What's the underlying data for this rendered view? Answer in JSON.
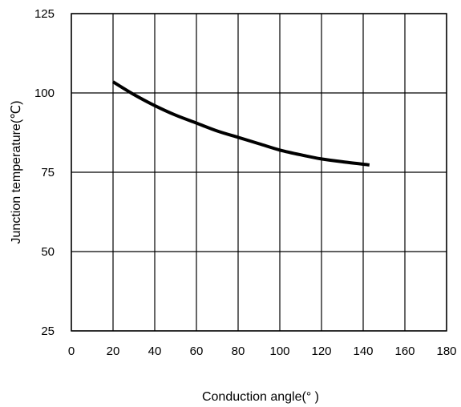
{
  "chart_data": {
    "type": "line",
    "title": "",
    "xlabel": "Conduction angle(° )",
    "ylabel": "Junction  temperature(℃)",
    "xlim": [
      0,
      180
    ],
    "ylim": [
      25,
      125
    ],
    "x_ticks": [
      0,
      20,
      40,
      60,
      80,
      100,
      120,
      140,
      160,
      180
    ],
    "y_ticks": [
      25,
      50,
      75,
      100,
      125
    ],
    "x_tick_labels": [
      "0",
      "20",
      "40",
      "60",
      "80",
      "100",
      "120",
      "140",
      "160",
      "180"
    ],
    "y_tick_labels": [
      "25",
      "50",
      "75",
      "100",
      "125"
    ],
    "grid": true,
    "series": [
      {
        "x": [
          20,
          30,
          40,
          50,
          60,
          70,
          80,
          90,
          100,
          110,
          120,
          130,
          143
        ],
        "y": [
          103.5,
          99.5,
          96.0,
          93.0,
          90.5,
          88.0,
          86.0,
          84.0,
          82.0,
          80.5,
          79.2,
          78.3,
          77.3
        ]
      }
    ],
    "line_color": "#000000"
  }
}
